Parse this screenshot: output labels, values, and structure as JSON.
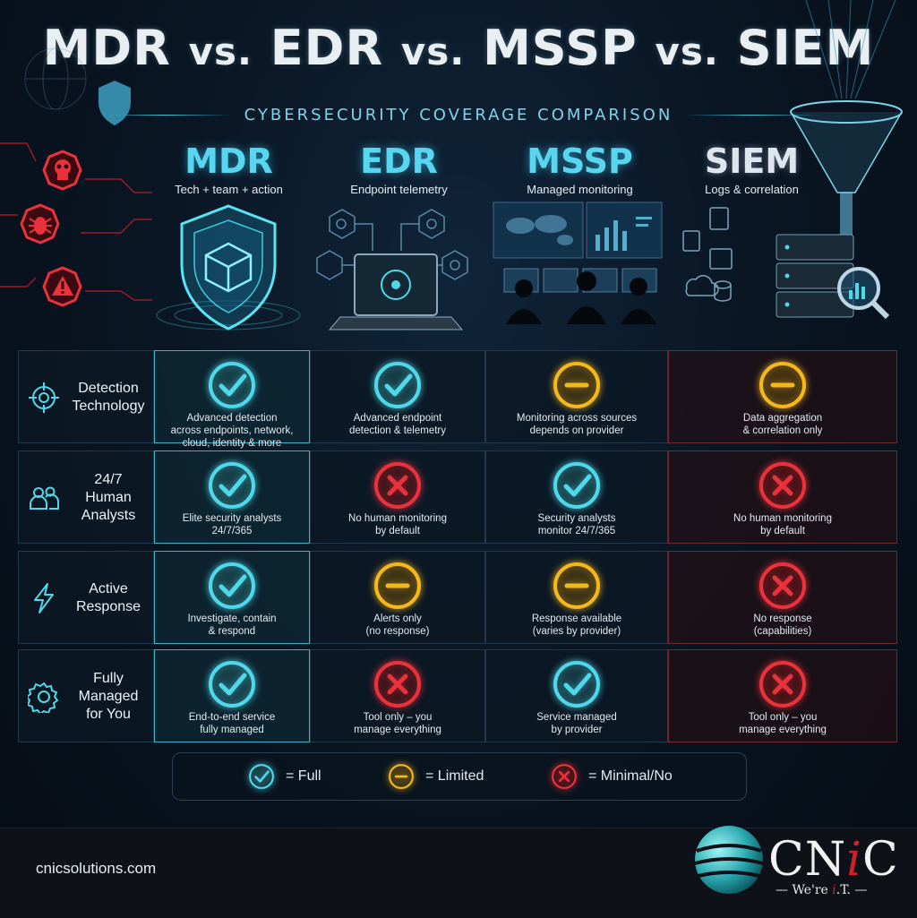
{
  "title": {
    "p1": "MDR",
    "vs1": "vs.",
    "p2": "EDR",
    "vs2": "vs.",
    "p3": "MSSP",
    "vs3": "vs.",
    "p4": "SIEM"
  },
  "subtitle": "CYBERSECURITY COVERAGE COMPARISON",
  "columns": [
    {
      "name": "MDR",
      "desc": "Tech + team + action"
    },
    {
      "name": "EDR",
      "desc": "Endpoint telemetry"
    },
    {
      "name": "MSSP",
      "desc": "Managed monitoring"
    },
    {
      "name": "SIEM",
      "desc": "Logs & correlation"
    }
  ],
  "rows": [
    {
      "label_lines": [
        "Detection",
        "Technology"
      ],
      "icon": "target-icon",
      "cells": [
        {
          "status": "full",
          "lines": [
            "Advanced detection",
            "across endpoints, network,",
            "cloud, identity & more"
          ]
        },
        {
          "status": "full",
          "lines": [
            "Advanced endpoint",
            "detection & telemetry"
          ]
        },
        {
          "status": "limited",
          "lines": [
            "Monitoring across sources",
            "depends on provider"
          ]
        },
        {
          "status": "limited",
          "lines": [
            "Data aggregation",
            "& correlation only"
          ]
        }
      ]
    },
    {
      "label_lines": [
        "24/7",
        "Human Analysts"
      ],
      "icon": "people-icon",
      "cells": [
        {
          "status": "full",
          "lines": [
            "Elite security analysts",
            "24/7/365"
          ]
        },
        {
          "status": "no",
          "lines": [
            "No human monitoring",
            "by default"
          ]
        },
        {
          "status": "full",
          "lines": [
            "Security analysts",
            "monitor 24/7/365"
          ]
        },
        {
          "status": "no",
          "lines": [
            "No human monitoring",
            "by default"
          ]
        }
      ]
    },
    {
      "label_lines": [
        "Active",
        "Response"
      ],
      "icon": "lightning-icon",
      "cells": [
        {
          "status": "full",
          "lines": [
            "Investigate, contain",
            "& respond"
          ]
        },
        {
          "status": "limited",
          "lines": [
            "Alerts only",
            "(no response)"
          ]
        },
        {
          "status": "limited",
          "lines": [
            "Response available",
            "(varies by provider)"
          ]
        },
        {
          "status": "no",
          "lines": [
            "No response",
            "(capabilities)"
          ]
        }
      ]
    },
    {
      "label_lines": [
        "Fully",
        "Managed",
        "for You"
      ],
      "icon": "gear-icon",
      "cells": [
        {
          "status": "full",
          "lines": [
            "End-to-end service",
            "fully managed"
          ]
        },
        {
          "status": "no",
          "lines": [
            "Tool only – you",
            "manage everything"
          ]
        },
        {
          "status": "full",
          "lines": [
            "Service managed",
            "by provider"
          ]
        },
        {
          "status": "no",
          "lines": [
            "Tool only – you",
            "manage everything"
          ]
        }
      ]
    }
  ],
  "legend": {
    "full": "= Full",
    "limited": "= Limited",
    "no": "= Minimal/No"
  },
  "footer": {
    "url": "cnicsolutions.com",
    "logo_c1": "CN",
    "logo_i": "i",
    "logo_c2": "C",
    "tagline_pre": "We're ",
    "tagline_it": "i",
    "tagline_post": ".T."
  },
  "colors": {
    "full": "#4fd8ea",
    "limited": "#f4b71e",
    "no": "#e8323c",
    "accent": "#3ec9e0"
  }
}
